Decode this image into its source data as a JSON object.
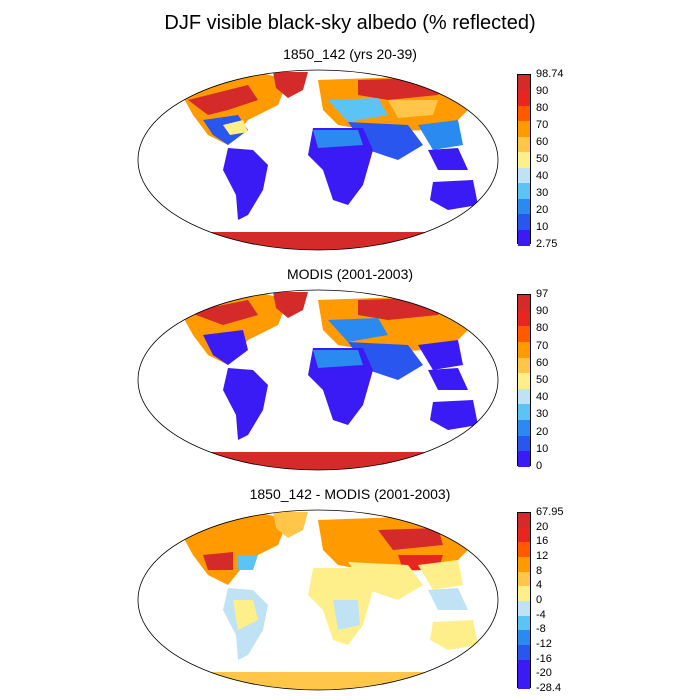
{
  "title": "DJF visible black-sky albedo (% reflected)",
  "panels": [
    {
      "title": "1850_142 (yrs 20-39)",
      "colorbar": {
        "labels": [
          "98.74",
          "90",
          "80",
          "70",
          "60",
          "50",
          "40",
          "30",
          "20",
          "10",
          "2.75"
        ],
        "colors": [
          "#d42a2a",
          "#e8261f",
          "#ff5a00",
          "#ff9a00",
          "#ffc64a",
          "#ffef8a",
          "#bfe3f5",
          "#5cc3f5",
          "#2a8af0",
          "#2a56f0",
          "#3a1af5"
        ]
      }
    },
    {
      "title": "MODIS (2001-2003)",
      "colorbar": {
        "labels": [
          "97",
          "90",
          "80",
          "70",
          "60",
          "50",
          "40",
          "30",
          "20",
          "10",
          "0"
        ],
        "colors": [
          "#d42a2a",
          "#e8261f",
          "#ff5a00",
          "#ff9a00",
          "#ffc64a",
          "#ffef8a",
          "#bfe3f5",
          "#5cc3f5",
          "#2a8af0",
          "#2a56f0",
          "#3a1af5"
        ]
      }
    },
    {
      "title": "1850_142 - MODIS (2001-2003)",
      "colorbar": {
        "labels": [
          "67.95",
          "20",
          "16",
          "12",
          "8",
          "4",
          "0",
          "-4",
          "-8",
          "-12",
          "-16",
          "-20",
          "-28.4"
        ],
        "colors": [
          "#d42a2a",
          "#e8261f",
          "#ff5a00",
          "#ff9a00",
          "#ffc64a",
          "#ffef8a",
          "#bfe3f5",
          "#5cc3f5",
          "#2a8af0",
          "#2a56f0",
          "#3a1af5",
          "#3a1af5"
        ]
      }
    }
  ]
}
